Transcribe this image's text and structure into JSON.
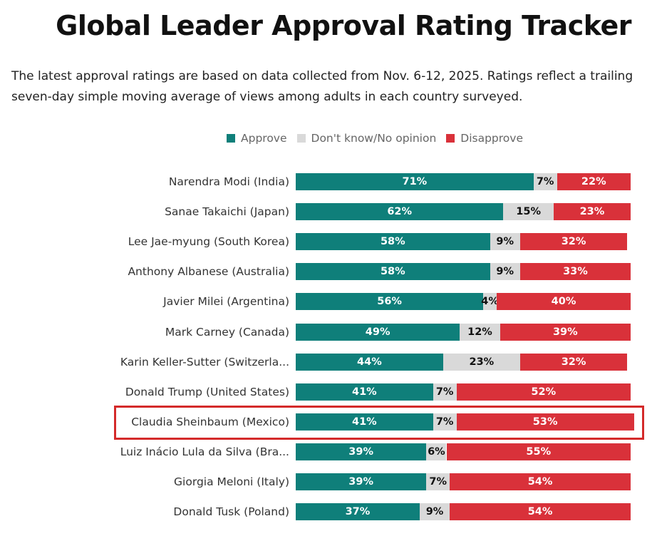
{
  "header": {
    "title": "Global Leader Approval Rating Tracker",
    "subtitle": "The latest approval ratings are based on data collected from Nov. 6-12, 2025. Ratings reflect a trailing seven-day simple moving average of views among adults in each country surveyed."
  },
  "colors": {
    "approve": "#0f7f7a",
    "neutral": "#d9d9d9",
    "disapprove": "#d9313a",
    "highlight": "#d42a2a"
  },
  "chart_data": {
    "type": "bar",
    "orientation": "horizontal-stacked-100",
    "legend_position": "top",
    "xlim": [
      0,
      100
    ],
    "highlighted_category": "Claudia Sheinbaum (Mexico)",
    "categories": [
      "Narendra Modi (India)",
      "Sanae Takaichi (Japan)",
      "Lee Jae-myung (South Korea)",
      "Anthony Albanese (Australia)",
      "Javier Milei (Argentina)",
      "Mark Carney (Canada)",
      "Karin Keller-Sutter (Switzerla...",
      "Donald Trump (United States)",
      "Claudia Sheinbaum (Mexico)",
      "Luiz Inácio Lula da Silva (Bra...",
      "Giorgia Meloni (Italy)",
      "Donald Tusk (Poland)"
    ],
    "series": [
      {
        "name": "Approve",
        "key": "approve",
        "values": [
          71,
          62,
          58,
          58,
          56,
          49,
          44,
          41,
          41,
          39,
          39,
          37
        ]
      },
      {
        "name": "Don't know/No opinion",
        "key": "neutral",
        "values": [
          7,
          15,
          9,
          9,
          4,
          12,
          23,
          7,
          7,
          6,
          7,
          9
        ]
      },
      {
        "name": "Disapprove",
        "key": "disapprove",
        "values": [
          22,
          23,
          32,
          33,
          40,
          39,
          32,
          52,
          53,
          55,
          54,
          54
        ]
      }
    ]
  }
}
